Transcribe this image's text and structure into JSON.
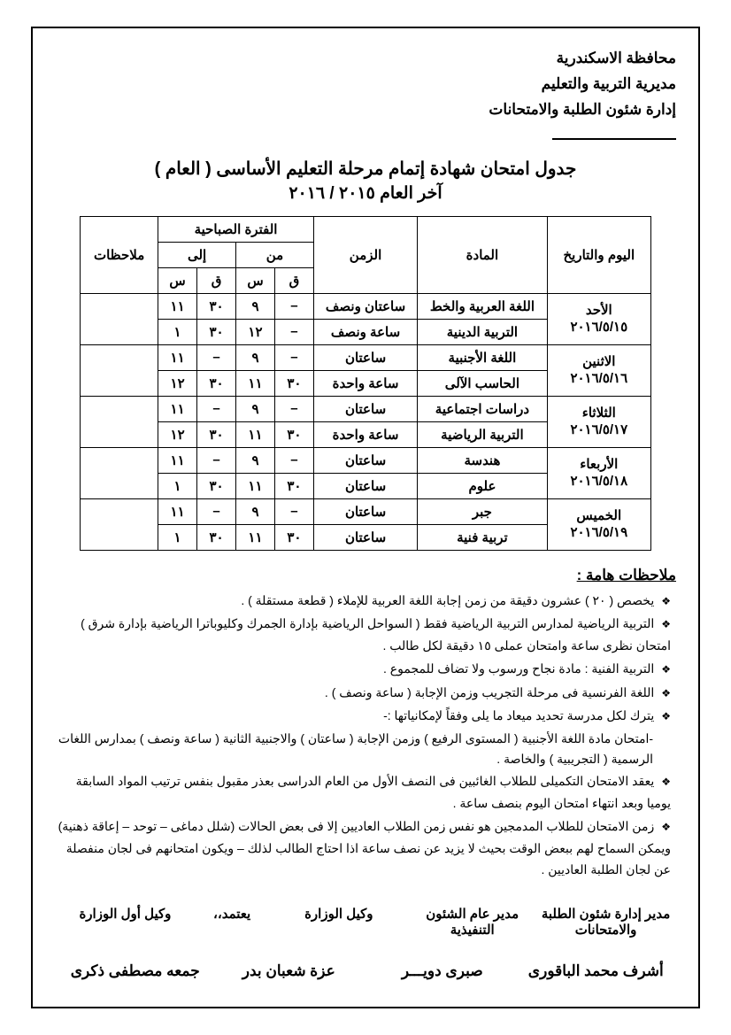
{
  "header": {
    "line1": "محافظة الاسكندرية",
    "line2": "مديرية التربية والتعليم",
    "line3": "إدارة شئون الطلبة والامتحانات"
  },
  "title": "جدول امتحان شهادة إتمام مرحلة التعليم الأساسى ( العام )",
  "subtitle": "آخر العام ٢٠١٥ / ٢٠١٦",
  "table": {
    "headers": {
      "date": "اليوم والتاريخ",
      "subject": "المادة",
      "duration": "الزمن",
      "morning_period": "الفترة الصباحية",
      "from": "من",
      "to": "إلى",
      "q": "ق",
      "s": "س",
      "notes": "ملاحظات"
    },
    "days": [
      {
        "day": "الأحد",
        "date": "٢٠١٦/٥/١٥",
        "rows": [
          {
            "subject": "اللغة العربية والخط",
            "duration": "ساعتان ونصف",
            "from_q": "–",
            "from_s": "٩",
            "to_q": "٣٠",
            "to_s": "١١",
            "notes": ""
          },
          {
            "subject": "التربية الدينية",
            "duration": "ساعة ونصف",
            "from_q": "–",
            "from_s": "١٢",
            "to_q": "٣٠",
            "to_s": "١",
            "notes": ""
          }
        ]
      },
      {
        "day": "الاثنين",
        "date": "٢٠١٦/٥/١٦",
        "rows": [
          {
            "subject": "اللغة الأجنبية",
            "duration": "ساعتان",
            "from_q": "–",
            "from_s": "٩",
            "to_q": "–",
            "to_s": "١١",
            "notes": ""
          },
          {
            "subject": "الحاسب الآلى",
            "duration": "ساعة واحدة",
            "from_q": "٣٠",
            "from_s": "١١",
            "to_q": "٣٠",
            "to_s": "١٢",
            "notes": ""
          }
        ]
      },
      {
        "day": "الثلاثاء",
        "date": "٢٠١٦/٥/١٧",
        "rows": [
          {
            "subject": "دراسات اجتماعية",
            "duration": "ساعتان",
            "from_q": "–",
            "from_s": "٩",
            "to_q": "–",
            "to_s": "١١",
            "notes": ""
          },
          {
            "subject": "التربية الرياضية",
            "duration": "ساعة واحدة",
            "from_q": "٣٠",
            "from_s": "١١",
            "to_q": "٣٠",
            "to_s": "١٢",
            "notes": ""
          }
        ]
      },
      {
        "day": "الأربعاء",
        "date": "٢٠١٦/٥/١٨",
        "rows": [
          {
            "subject": "هندسة",
            "duration": "ساعتان",
            "from_q": "–",
            "from_s": "٩",
            "to_q": "–",
            "to_s": "١١",
            "notes": ""
          },
          {
            "subject": "علوم",
            "duration": "ساعتان",
            "from_q": "٣٠",
            "from_s": "١١",
            "to_q": "٣٠",
            "to_s": "١",
            "notes": ""
          }
        ]
      },
      {
        "day": "الخميس",
        "date": "٢٠١٦/٥/١٩",
        "rows": [
          {
            "subject": "جبر",
            "duration": "ساعتان",
            "from_q": "–",
            "from_s": "٩",
            "to_q": "–",
            "to_s": "١١",
            "notes": ""
          },
          {
            "subject": "تربية فنية",
            "duration": "ساعتان",
            "from_q": "٣٠",
            "from_s": "١١",
            "to_q": "٣٠",
            "to_s": "١",
            "notes": ""
          }
        ]
      }
    ]
  },
  "notes_title": "ملاحظات هامة :",
  "notes": [
    "يخصص ( ٢٠ ) عشرون دقيقة من زمن إجابة اللغة العربية للإملاء ( قطعة مستقلة ) .",
    "التربية الرياضية لمدارس التربية الرياضية فقط ( السواحل الرياضية بإدارة الجمرك وكليوباترا الرياضية بإدارة شرق ) امتحان نظرى ساعة وامتحان عملى ١٥ دقيقة لكل طالب .",
    "التربية الفنية : مادة نجاح ورسوب ولا تضاف للمجموع .",
    "اللغة الفرنسية فى مرحلة التجريب وزمن الإجابة ( ساعة ونصف ) .",
    "يترك لكل مدرسة تحديد ميعاد ما يلى وفقاً لإمكانياتها :-",
    "يعقد الامتحان التكميلى للطلاب الغائبين فى النصف الأول من العام الدراسى بعذر مقبول بنفس ترتيب المواد السابقة يوميا وبعد انتهاء امتحان اليوم بنصف ساعة .",
    "زمن الامتحان للطلاب المدمجين هو نفس زمن الطلاب العاديين إلا فى بعض الحالات (شلل دماغى – توحد – إعاقة ذهنية) ويمكن السماح لهم ببعض الوقت بحيث لا يزيد عن نصف ساعة اذا احتاج الطالب لذلك – ويكون امتحانهم فى لجان منفصلة عن لجان الطلبة العاديين ."
  ],
  "subnote": "-امتحان مادة اللغة الأجنبية ( المستوى الرفيع ) وزمن الإجابة ( ساعتان ) والاجنبية الثانية ( ساعة ونصف ) بمدارس اللغات الرسمية ( التجريبية )  والخاصة .",
  "signatures": {
    "titles": {
      "t1": "مدير إدارة شئون الطلبة والامتحانات",
      "t2": "مدير عام الشئون التنفيذية",
      "t3": "وكيل الوزارة",
      "t4": "يعتمد،،",
      "t5": "وكيل أول الوزارة"
    },
    "names": {
      "n1": "أشرف محمد الباقورى",
      "n2": "صبرى دويـــر",
      "n3": "عزة شعبان بدر",
      "n4": "جمعه مصطفى ذكرى"
    }
  }
}
